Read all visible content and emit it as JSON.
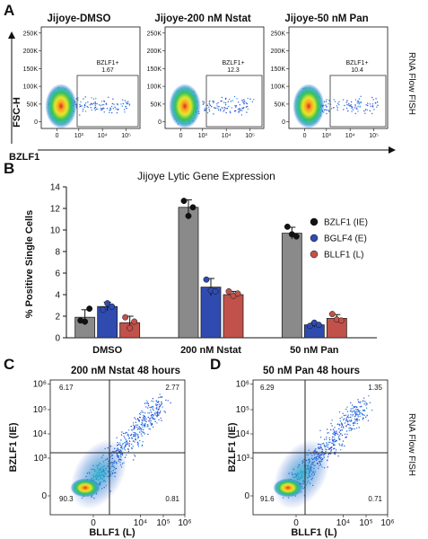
{
  "panel_letters": [
    "A",
    "B",
    "C",
    "D"
  ],
  "panel_a": {
    "plots": [
      {
        "title": "Jijoye-DMSO",
        "gate_label": "BZLF1+",
        "gate_value": "1.67"
      },
      {
        "title": "Jijoye-200 nM Nstat",
        "gate_label": "BZLF1+",
        "gate_value": "12.3"
      },
      {
        "title": "Jijoye-50 nM Pan",
        "gate_label": "BZLF1+",
        "gate_value": "10.4"
      }
    ],
    "y_axis_label": "FSC-H",
    "x_axis_label": "BZLF1",
    "y_ticks": [
      "250K",
      "200K",
      "150K",
      "100K",
      "50K",
      "0"
    ],
    "x_ticks": [
      "0",
      "10³",
      "10⁴",
      "10⁵"
    ],
    "side_label": "RNA Flow FISH"
  },
  "chart_data": {
    "type": "bar",
    "title": "Jijoye Lytic Gene Expression",
    "ylabel": "% Positive Single Cells",
    "xlabel": "",
    "ylim": [
      0,
      14
    ],
    "yticks": [
      0,
      2,
      4,
      6,
      8,
      10,
      12,
      14
    ],
    "categories": [
      "DMSO",
      "200 nM Nstat",
      "50 nM Pan"
    ],
    "legend_position": "top-right",
    "legend": [
      {
        "label": "BZLF1 (IE)",
        "color": "#111111"
      },
      {
        "label": "BGLF4 (E)",
        "color": "#2f4bb0"
      },
      {
        "label": "BLLF1 (L)",
        "color": "#c1524a"
      }
    ],
    "series": [
      {
        "name": "BZLF1 (IE)",
        "bar_color": "#8a8a8a",
        "point_color": "#111111",
        "values": [
          1.9,
          12.1,
          9.7
        ],
        "errors": [
          0.7,
          0.7,
          0.55
        ],
        "points": [
          [
            1.6,
            1.5,
            2.7
          ],
          [
            12.7,
            11.3,
            12.1
          ],
          [
            10.3,
            9.6,
            9.4
          ]
        ]
      },
      {
        "name": "BGLF4 (E)",
        "bar_color": "#2f4bb0",
        "point_color": "#2f4bb0",
        "values": [
          2.9,
          4.7,
          1.2
        ],
        "errors": [
          0.4,
          0.8,
          0.2
        ],
        "points": [
          [
            2.6,
            3.2,
            2.9
          ],
          [
            5.4,
            4.4,
            4.3
          ],
          [
            1.1,
            1.4,
            1.2
          ]
        ]
      },
      {
        "name": "BLLF1 (L)",
        "bar_color": "#c1524a",
        "point_color": "#c1524a",
        "values": [
          1.4,
          4.0,
          1.8
        ],
        "errors": [
          0.6,
          0.3,
          0.35
        ],
        "points": [
          [
            1.9,
            0.9,
            1.5
          ],
          [
            4.3,
            3.9,
            4.1
          ],
          [
            2.2,
            1.7,
            1.6
          ]
        ]
      }
    ]
  },
  "panel_c": {
    "title": "200 nM Nstat 48 hours",
    "quadrants": {
      "top_left": "6.17",
      "top_right": "2.77",
      "bottom_left": "90.3",
      "bottom_right": "0.81"
    }
  },
  "panel_d": {
    "title": "50 nM Pan 48 hours",
    "quadrants": {
      "top_left": "6.29",
      "top_right": "1.35",
      "bottom_left": "91.6",
      "bottom_right": "0.71"
    }
  },
  "panel_cd": {
    "y_axis_label": "BZLF1 (IE)",
    "x_axis_label": "BLLF1 (L)",
    "y_ticks": [
      "10⁶",
      "10⁵",
      "10⁴",
      "10³",
      "0"
    ],
    "x_ticks": [
      "0",
      "10⁴",
      "10⁵",
      "10⁶"
    ],
    "side_label": "RNA Flow FISH"
  }
}
